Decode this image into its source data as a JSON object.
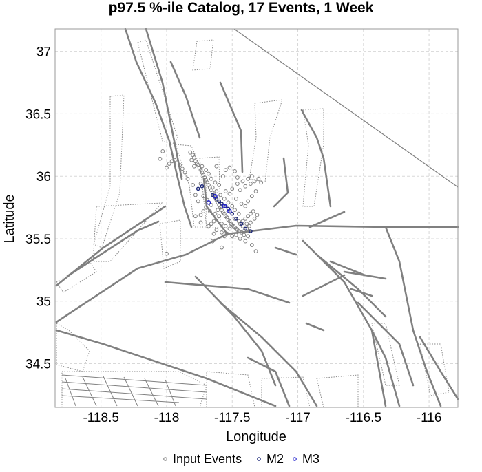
{
  "chart_data": {
    "type": "scatter",
    "title": "p97.5 %-ile Catalog, 17 Events, 1 Week",
    "xlabel": "Longitude",
    "ylabel": "Latitude",
    "xlim": [
      -118.85,
      -115.78
    ],
    "ylim": [
      34.15,
      37.18
    ],
    "x_ticks": [
      -118.5,
      -118,
      -117.5,
      -117,
      -116.5,
      -116
    ],
    "y_ticks": [
      34.5,
      35,
      35.5,
      36,
      36.5,
      37
    ],
    "x_tick_labels": [
      "-118.5",
      "-118",
      "-117.5",
      "-117",
      "-116.5",
      "-116"
    ],
    "y_tick_labels": [
      "34.5",
      "35",
      "35.5",
      "36",
      "36.5",
      "37"
    ],
    "grid": true,
    "legend_position": "bottom",
    "series": [
      {
        "name": "Input Events",
        "color": "#808080",
        "points": [
          [
            -117.82,
            36.19
          ],
          [
            -117.8,
            36.17
          ],
          [
            -117.79,
            36.15
          ],
          [
            -117.81,
            36.13
          ],
          [
            -117.78,
            36.12
          ],
          [
            -117.77,
            36.1
          ],
          [
            -117.76,
            36.09
          ],
          [
            -117.79,
            36.08
          ],
          [
            -117.75,
            36.07
          ],
          [
            -117.74,
            36.05
          ],
          [
            -117.73,
            36.03
          ],
          [
            -117.72,
            36.01
          ],
          [
            -117.71,
            35.99
          ],
          [
            -117.7,
            35.97
          ],
          [
            -117.69,
            35.95
          ],
          [
            -117.68,
            35.93
          ],
          [
            -117.67,
            35.91
          ],
          [
            -117.66,
            35.89
          ],
          [
            -117.65,
            35.87
          ],
          [
            -117.64,
            35.85
          ],
          [
            -117.63,
            35.83
          ],
          [
            -117.62,
            35.81
          ],
          [
            -117.61,
            35.79
          ],
          [
            -117.6,
            35.77
          ],
          [
            -117.59,
            35.75
          ],
          [
            -117.58,
            35.73
          ],
          [
            -117.57,
            35.71
          ],
          [
            -117.56,
            35.7
          ],
          [
            -117.55,
            35.68
          ],
          [
            -117.54,
            35.67
          ],
          [
            -117.53,
            35.65
          ],
          [
            -117.52,
            35.64
          ],
          [
            -117.51,
            35.62
          ],
          [
            -117.5,
            35.61
          ],
          [
            -117.49,
            35.6
          ],
          [
            -117.48,
            35.59
          ],
          [
            -117.47,
            35.58
          ],
          [
            -117.46,
            35.57
          ],
          [
            -117.45,
            35.56
          ],
          [
            -117.43,
            35.55
          ],
          [
            -117.41,
            35.56
          ],
          [
            -117.39,
            35.58
          ],
          [
            -117.37,
            35.6
          ],
          [
            -117.6,
            35.68
          ],
          [
            -117.62,
            35.66
          ],
          [
            -117.64,
            35.64
          ],
          [
            -117.66,
            35.62
          ],
          [
            -117.68,
            35.6
          ],
          [
            -117.58,
            35.62
          ],
          [
            -117.55,
            35.6
          ],
          [
            -117.52,
            35.58
          ],
          [
            -117.44,
            35.62
          ],
          [
            -117.42,
            35.64
          ],
          [
            -117.4,
            35.66
          ],
          [
            -117.38,
            35.68
          ],
          [
            -117.36,
            35.7
          ],
          [
            -117.34,
            35.72
          ],
          [
            -117.45,
            35.7
          ],
          [
            -117.48,
            35.73
          ],
          [
            -117.5,
            35.76
          ],
          [
            -117.53,
            35.79
          ],
          [
            -117.56,
            35.82
          ],
          [
            -117.59,
            35.85
          ],
          [
            -117.62,
            35.88
          ],
          [
            -117.65,
            35.91
          ],
          [
            -117.55,
            35.88
          ],
          [
            -117.52,
            35.86
          ],
          [
            -117.5,
            35.9
          ],
          [
            -117.46,
            35.94
          ],
          [
            -117.42,
            35.96
          ],
          [
            -117.38,
            35.98
          ],
          [
            -117.35,
            36.0
          ],
          [
            -117.33,
            35.96
          ],
          [
            -117.36,
            35.94
          ],
          [
            -117.4,
            35.92
          ],
          [
            -117.44,
            35.89
          ],
          [
            -117.3,
            35.98
          ],
          [
            -117.28,
            35.95
          ],
          [
            -117.32,
            35.88
          ],
          [
            -117.35,
            35.84
          ],
          [
            -117.38,
            35.8
          ],
          [
            -117.4,
            35.76
          ],
          [
            -117.43,
            35.78
          ],
          [
            -117.47,
            35.82
          ],
          [
            -117.7,
            35.75
          ],
          [
            -117.72,
            35.72
          ],
          [
            -117.74,
            35.69
          ],
          [
            -117.76,
            35.8
          ],
          [
            -117.78,
            35.85
          ],
          [
            -117.8,
            35.93
          ],
          [
            -117.84,
            35.98
          ],
          [
            -117.86,
            36.03
          ],
          [
            -117.88,
            36.06
          ],
          [
            -117.9,
            36.09
          ],
          [
            -117.92,
            36.11
          ],
          [
            -117.94,
            36.13
          ],
          [
            -117.96,
            36.12
          ],
          [
            -117.98,
            36.1
          ],
          [
            -118.0,
            36.07
          ],
          [
            -118.03,
            36.2
          ],
          [
            -118.05,
            36.14
          ],
          [
            -117.73,
            36.08
          ],
          [
            -117.7,
            36.05
          ],
          [
            -117.68,
            36.02
          ],
          [
            -117.66,
            35.98
          ],
          [
            -117.63,
            35.95
          ],
          [
            -117.6,
            35.93
          ],
          [
            -117.57,
            36.0
          ],
          [
            -117.55,
            36.05
          ],
          [
            -117.52,
            36.07
          ],
          [
            -117.48,
            36.04
          ],
          [
            -117.46,
            35.99
          ],
          [
            -117.62,
            36.08
          ],
          [
            -117.74,
            35.94
          ],
          [
            -117.54,
            35.54
          ],
          [
            -117.56,
            35.52
          ],
          [
            -117.58,
            35.55
          ],
          [
            -117.62,
            35.57
          ],
          [
            -117.64,
            35.54
          ],
          [
            -117.5,
            35.52
          ],
          [
            -117.47,
            35.53
          ],
          [
            -117.44,
            35.5
          ],
          [
            -117.4,
            35.48
          ],
          [
            -117.38,
            35.52
          ],
          [
            -117.35,
            35.45
          ],
          [
            -117.32,
            35.4
          ],
          [
            -117.58,
            35.43
          ],
          [
            -117.65,
            35.48
          ],
          [
            -118.0,
            35.38
          ],
          [
            -117.74,
            35.63
          ],
          [
            -117.78,
            35.68
          ],
          [
            -117.36,
            35.63
          ],
          [
            -117.33,
            35.66
          ],
          [
            -117.31,
            35.69
          ],
          [
            -117.48,
            35.66
          ],
          [
            -117.53,
            35.72
          ],
          [
            -117.58,
            35.76
          ],
          [
            -117.61,
            35.73
          ],
          [
            -117.66,
            35.77
          ],
          [
            -117.69,
            35.81
          ],
          [
            -117.72,
            35.84
          ],
          [
            -117.67,
            35.72
          ],
          [
            -117.63,
            35.7
          ],
          [
            -117.45,
            35.64
          ],
          [
            -117.42,
            35.6
          ],
          [
            -117.39,
            35.62
          ],
          [
            -117.37,
            35.56
          ],
          [
            -117.41,
            35.53
          ]
        ]
      },
      {
        "name": "M2",
        "color": "#1f2a7a",
        "points": [
          [
            -117.76,
            35.9
          ],
          [
            -117.73,
            35.92
          ],
          [
            -117.65,
            35.85
          ],
          [
            -117.62,
            35.82
          ],
          [
            -117.58,
            35.78
          ],
          [
            -117.55,
            35.76
          ],
          [
            -117.5,
            35.7
          ],
          [
            -117.47,
            35.66
          ],
          [
            -117.43,
            35.62
          ],
          [
            -117.4,
            35.58
          ],
          [
            -117.36,
            35.56
          ],
          [
            -117.53,
            35.74
          ],
          [
            -117.6,
            35.8
          ]
        ]
      },
      {
        "name": "M3",
        "color": "#2222cc",
        "points": [
          [
            -117.68,
            35.79
          ],
          [
            -117.63,
            35.84
          ],
          [
            -117.56,
            35.76
          ],
          [
            -117.52,
            35.72
          ]
        ]
      }
    ]
  },
  "colors": {
    "grid": "#d8d8d8",
    "faults": "#808080",
    "frame": "#999999"
  }
}
